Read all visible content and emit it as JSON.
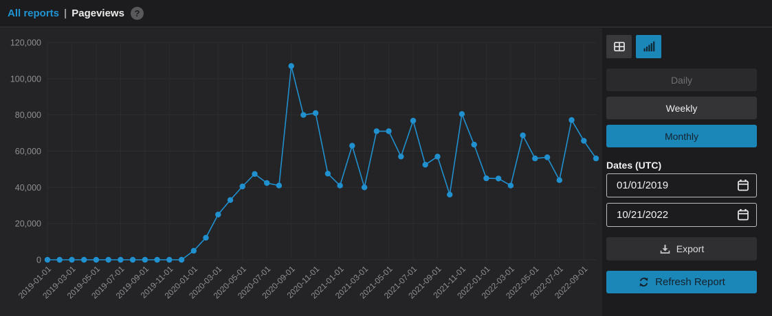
{
  "header": {
    "all_reports_link": "All reports",
    "separator": "|",
    "title": "Pageviews",
    "help_glyph": "?"
  },
  "view_toggle": {
    "options": [
      {
        "name": "table-view",
        "icon": "table-icon",
        "active": false
      },
      {
        "name": "chart-view",
        "icon": "bar-chart-icon",
        "active": true
      }
    ]
  },
  "granularity": {
    "options": [
      {
        "label": "Daily",
        "state": "disabled"
      },
      {
        "label": "Weekly",
        "state": "normal"
      },
      {
        "label": "Monthly",
        "state": "active"
      }
    ]
  },
  "dates": {
    "label": "Dates (UTC)",
    "start": "01/01/2019",
    "end": "10/21/2022",
    "calendar_icon": "calendar-icon"
  },
  "actions": {
    "export_label": "Export",
    "export_icon": "download-icon",
    "refresh_label": "Refresh Report",
    "refresh_icon": "refresh-icon"
  },
  "colors": {
    "accent_button_blue": "#1b87b9",
    "link_blue": "#2193d1",
    "line_blue": "#2090ce",
    "panel_bg": "#242427",
    "page_bg": "#1c1c1e",
    "grid": "#2e2e31",
    "axis_text": "#8f8f91"
  },
  "chart_data": {
    "type": "line",
    "series_name": "Pageviews",
    "x": [
      "2019-01-01",
      "2019-02-01",
      "2019-03-01",
      "2019-04-01",
      "2019-05-01",
      "2019-06-01",
      "2019-07-01",
      "2019-08-01",
      "2019-09-01",
      "2019-10-01",
      "2019-11-01",
      "2019-12-01",
      "2020-01-01",
      "2020-02-01",
      "2020-03-01",
      "2020-04-01",
      "2020-05-01",
      "2020-06-01",
      "2020-07-01",
      "2020-08-01",
      "2020-09-01",
      "2020-10-01",
      "2020-11-01",
      "2020-12-01",
      "2021-01-01",
      "2021-02-01",
      "2021-03-01",
      "2021-04-01",
      "2021-05-01",
      "2021-06-01",
      "2021-07-01",
      "2021-08-01",
      "2021-09-01",
      "2021-10-01",
      "2021-11-01",
      "2021-12-01",
      "2022-01-01",
      "2022-02-01",
      "2022-03-01",
      "2022-04-01",
      "2022-05-01",
      "2022-06-01",
      "2022-07-01",
      "2022-08-01",
      "2022-09-01",
      "2022-10-01"
    ],
    "values": [
      0,
      0,
      0,
      0,
      0,
      0,
      0,
      0,
      0,
      0,
      0,
      0,
      5000,
      12200,
      25000,
      33000,
      40500,
      47400,
      42400,
      41000,
      107000,
      80000,
      81000,
      47600,
      41000,
      63000,
      40000,
      71000,
      71000,
      57000,
      76800,
      52500,
      57000,
      36000,
      80500,
      63600,
      45000,
      44900,
      41000,
      68700,
      56000,
      56600,
      44000,
      77200,
      65700,
      56000
    ],
    "x_tick_step": 2,
    "y_ticks": [
      0,
      20000,
      40000,
      60000,
      80000,
      100000,
      120000
    ],
    "y_tick_labels": [
      "0",
      "20,000",
      "40,000",
      "60,000",
      "80,000",
      "100,000",
      "120,000"
    ],
    "ylim": [
      0,
      120000
    ],
    "grid": true,
    "marker": "circle",
    "line_color": "#2090ce",
    "legend": "none"
  }
}
